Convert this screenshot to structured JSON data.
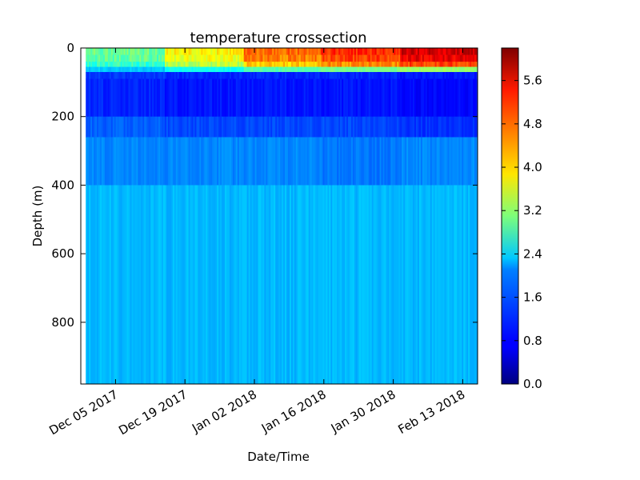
{
  "chart_data": {
    "type": "heatmap",
    "title": "temperature crossection",
    "xlabel": "Date/Time",
    "ylabel": "Depth (m)",
    "x_range": [
      "2017-11-28",
      "2018-02-16"
    ],
    "x_data_start": "2017-11-29",
    "ylim": [
      980,
      0
    ],
    "y_inverted": true,
    "x_ticks": [
      "Dec 05 2017",
      "Dec 19 2017",
      "Jan 02 2018",
      "Jan 16 2018",
      "Jan 30 2018",
      "Feb 13 2018"
    ],
    "x_tick_dates": [
      "2017-12-05",
      "2017-12-19",
      "2018-01-02",
      "2018-01-16",
      "2018-01-30",
      "2018-02-13"
    ],
    "y_ticks": [
      0,
      200,
      400,
      600,
      800
    ],
    "colormap": "jet",
    "colorbar": {
      "min": 0.0,
      "max": 6.2,
      "ticks": [
        0.0,
        0.8,
        1.6,
        2.4,
        3.2,
        4.0,
        4.8,
        5.6
      ],
      "tick_labels": [
        "0.0",
        "0.8",
        "1.6",
        "2.4",
        "3.2",
        "4.0",
        "4.8",
        "5.6"
      ]
    },
    "temperature_profile_by_period": [
      {
        "period": "Nov 29 - Dec 19 2017",
        "surface_0_50m": 3.0,
        "cold_layer_80_200m": 1.0,
        "mid_250_400m": 1.6,
        "deep_400_980m": 1.9
      },
      {
        "period": "Dec 19 - Jan 02 2018",
        "surface_0_50m": 3.9,
        "cold_layer_80_200m": 0.9,
        "mid_250_400m": 1.6,
        "deep_400_980m": 1.9
      },
      {
        "period": "Jan 02 - Jan 16 2018",
        "surface_0_50m": 4.8,
        "cold_layer_80_200m": 0.9,
        "mid_250_400m": 1.6,
        "deep_400_980m": 1.9
      },
      {
        "period": "Jan 16 - Jan 30 2018",
        "surface_0_50m": 5.2,
        "cold_layer_80_200m": 0.9,
        "mid_250_400m": 1.5,
        "deep_400_980m": 1.9
      },
      {
        "period": "Jan 30 - Feb 16 2018",
        "surface_0_50m": 5.7,
        "cold_layer_80_200m": 0.8,
        "mid_250_400m": 1.6,
        "deep_400_980m": 1.9
      }
    ],
    "mixed_layer_depth_m": [
      60,
      85
    ],
    "grid": false,
    "legend": "colorbar-right"
  }
}
